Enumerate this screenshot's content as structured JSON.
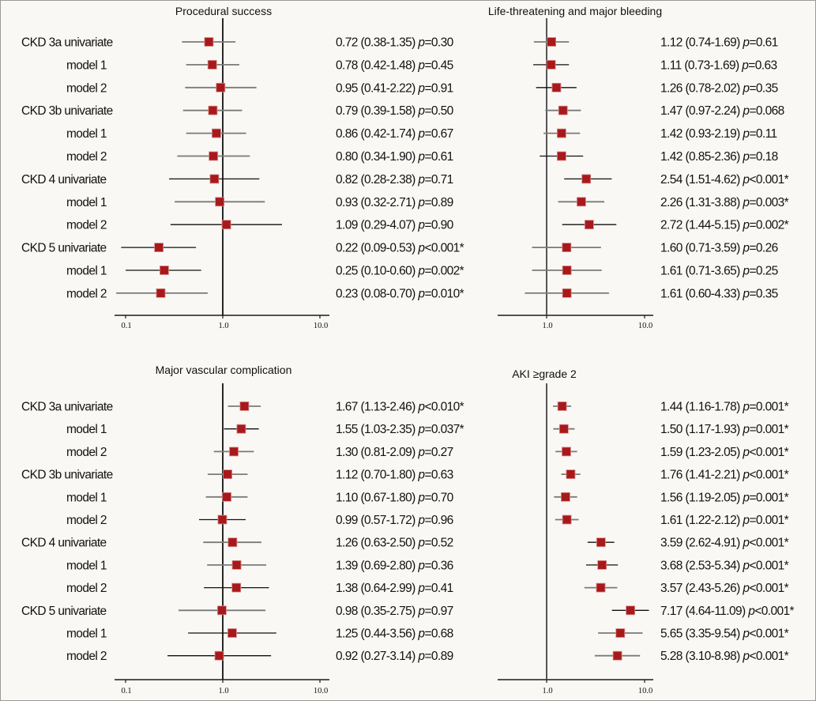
{
  "chart_data": [
    {
      "type": "forest",
      "title": "Procedural success",
      "scale": "log",
      "xlim": [
        0.08,
        11.5
      ],
      "xticks": [
        0.1,
        1.0,
        10.0
      ],
      "xtick_labels": [
        "0.1",
        "1.0",
        "10.0"
      ],
      "reference_line": 1.0,
      "show_row_labels": true,
      "rows": [
        {
          "label": "CKD 3a univariate",
          "indent": false,
          "or": 0.72,
          "lo": 0.38,
          "hi": 1.35,
          "p_op": "=",
          "p": "0.30",
          "sig": false,
          "line": "gray",
          "text": "0.72 (0.38-1.35)"
        },
        {
          "label": "model 1",
          "indent": true,
          "or": 0.78,
          "lo": 0.42,
          "hi": 1.48,
          "p_op": "=",
          "p": "0.45",
          "sig": false,
          "line": "gray",
          "text": "0.78 (0.42-1.48)"
        },
        {
          "label": "model 2",
          "indent": true,
          "or": 0.95,
          "lo": 0.41,
          "hi": 2.22,
          "p_op": "=",
          "p": "0.91",
          "sig": false,
          "line": "gray",
          "text": "0.95 (0.41-2.22)"
        },
        {
          "label": "CKD 3b univariate",
          "indent": false,
          "or": 0.79,
          "lo": 0.39,
          "hi": 1.58,
          "p_op": "=",
          "p": "0.50",
          "sig": false,
          "line": "gray",
          "text": "0.79 (0.39-1.58)"
        },
        {
          "label": "model 1",
          "indent": true,
          "or": 0.86,
          "lo": 0.42,
          "hi": 1.74,
          "p_op": "=",
          "p": "0.67",
          "sig": false,
          "line": "gray",
          "text": "0.86 (0.42-1.74)"
        },
        {
          "label": "model 2",
          "indent": true,
          "or": 0.8,
          "lo": 0.34,
          "hi": 1.9,
          "p_op": "=",
          "p": "0.61",
          "sig": false,
          "line": "gray",
          "text": "0.80 (0.34-1.90)"
        },
        {
          "label": "CKD 4 univariate",
          "indent": false,
          "or": 0.82,
          "lo": 0.28,
          "hi": 2.38,
          "p_op": "=",
          "p": "0.71",
          "sig": false,
          "line": "black",
          "text": "0.82 (0.28-2.38)"
        },
        {
          "label": "model 1",
          "indent": true,
          "or": 0.93,
          "lo": 0.32,
          "hi": 2.71,
          "p_op": "=",
          "p": "0.89",
          "sig": false,
          "line": "gray",
          "text": "0.93 (0.32-2.71)"
        },
        {
          "label": "model 2",
          "indent": true,
          "or": 1.09,
          "lo": 0.29,
          "hi": 4.07,
          "p_op": "=",
          "p": "0.90",
          "sig": false,
          "line": "black",
          "text": "1.09 (0.29-4.07)"
        },
        {
          "label": "CKD 5 univariate",
          "indent": false,
          "or": 0.22,
          "lo": 0.09,
          "hi": 0.53,
          "p_op": "<",
          "p": "0.001",
          "sig": true,
          "line": "black",
          "text": "0.22 (0.09-0.53)"
        },
        {
          "label": "model 1",
          "indent": true,
          "or": 0.25,
          "lo": 0.1,
          "hi": 0.6,
          "p_op": "=",
          "p": "0.002",
          "sig": true,
          "line": "black",
          "text": "0.25 (0.10-0.60)"
        },
        {
          "label": "model 2",
          "indent": true,
          "or": 0.23,
          "lo": 0.08,
          "hi": 0.7,
          "p_op": "=",
          "p": "0.010",
          "sig": true,
          "line": "gray",
          "text": "0.23 (0.08-0.70)"
        }
      ]
    },
    {
      "type": "forest",
      "title": "Life-threatening and major bleeding",
      "scale": "log",
      "xlim": [
        0.31,
        11.8
      ],
      "xticks": [
        1.0,
        10.0
      ],
      "xtick_labels": [
        "1.0",
        "10.0"
      ],
      "reference_line": 1.0,
      "show_row_labels": false,
      "rows": [
        {
          "label": "CKD 3a univariate",
          "indent": false,
          "or": 1.12,
          "lo": 0.74,
          "hi": 1.69,
          "p_op": "=",
          "p": "0.61",
          "sig": false,
          "line": "gray",
          "text": "1.12 (0.74-1.69)"
        },
        {
          "label": "model 1",
          "indent": true,
          "or": 1.11,
          "lo": 0.73,
          "hi": 1.69,
          "p_op": "=",
          "p": "0.63",
          "sig": false,
          "line": "black",
          "text": "1.11 (0.73-1.69)"
        },
        {
          "label": "model 2",
          "indent": true,
          "or": 1.26,
          "lo": 0.78,
          "hi": 2.02,
          "p_op": "=",
          "p": "0.35",
          "sig": false,
          "line": "black",
          "text": "1.26 (0.78-2.02)"
        },
        {
          "label": "CKD 3b univariate",
          "indent": false,
          "or": 1.47,
          "lo": 0.97,
          "hi": 2.24,
          "p_op": "=",
          "p": "0.068",
          "sig": false,
          "line": "gray",
          "text": "1.47 (0.97-2.24)"
        },
        {
          "label": "model 1",
          "indent": true,
          "or": 1.42,
          "lo": 0.93,
          "hi": 2.19,
          "p_op": "=",
          "p": "0.11",
          "sig": false,
          "line": "gray",
          "text": "1.42 (0.93-2.19)"
        },
        {
          "label": "model 2",
          "indent": true,
          "or": 1.42,
          "lo": 0.85,
          "hi": 2.36,
          "p_op": "=",
          "p": "0.18",
          "sig": false,
          "line": "black",
          "text": "1.42 (0.85-2.36)"
        },
        {
          "label": "CKD 4 univariate",
          "indent": false,
          "or": 2.54,
          "lo": 1.51,
          "hi": 4.62,
          "p_op": "<",
          "p": "0.001",
          "sig": true,
          "line": "black",
          "text": "2.54 (1.51-4.62)"
        },
        {
          "label": "model 1",
          "indent": true,
          "or": 2.26,
          "lo": 1.31,
          "hi": 3.88,
          "p_op": "=",
          "p": "0.003",
          "sig": true,
          "line": "gray",
          "text": "2.26 (1.31-3.88)"
        },
        {
          "label": "model 2",
          "indent": true,
          "or": 2.72,
          "lo": 1.44,
          "hi": 5.15,
          "p_op": "=",
          "p": "0.002",
          "sig": true,
          "line": "black",
          "text": "2.72 (1.44-5.15)"
        },
        {
          "label": "CKD 5 univariate",
          "indent": false,
          "or": 1.6,
          "lo": 0.71,
          "hi": 3.59,
          "p_op": "=",
          "p": "0.26",
          "sig": false,
          "line": "gray",
          "text": "1.60 (0.71-3.59)"
        },
        {
          "label": "model 1",
          "indent": true,
          "or": 1.61,
          "lo": 0.71,
          "hi": 3.65,
          "p_op": "=",
          "p": "0.25",
          "sig": false,
          "line": "gray",
          "text": "1.61 (0.71-3.65)"
        },
        {
          "label": "model 2",
          "indent": true,
          "or": 1.61,
          "lo": 0.6,
          "hi": 4.33,
          "p_op": "=",
          "p": "0.35",
          "sig": false,
          "line": "gray",
          "text": "1.61 (0.60-4.33)"
        }
      ]
    },
    {
      "type": "forest",
      "title": "Major vascular complication",
      "scale": "log",
      "xlim": [
        0.08,
        11.5
      ],
      "xticks": [
        0.1,
        1.0,
        10.0
      ],
      "xtick_labels": [
        "0.1",
        "1.0",
        "10.0"
      ],
      "reference_line": 1.0,
      "show_row_labels": true,
      "rows": [
        {
          "label": "CKD 3a univariate",
          "indent": false,
          "or": 1.67,
          "lo": 1.13,
          "hi": 2.46,
          "p_op": "<",
          "p": "0.010",
          "sig": true,
          "line": "gray",
          "text": "1.67 (1.13-2.46)"
        },
        {
          "label": "model 1",
          "indent": true,
          "or": 1.55,
          "lo": 1.03,
          "hi": 2.35,
          "p_op": "=",
          "p": "0.037",
          "sig": true,
          "line": "black",
          "text": "1.55 (1.03-2.35)"
        },
        {
          "label": "model 2",
          "indent": true,
          "or": 1.3,
          "lo": 0.81,
          "hi": 2.09,
          "p_op": "=",
          "p": "0.27",
          "sig": false,
          "line": "gray",
          "text": "1.30 (0.81-2.09)"
        },
        {
          "label": "CKD 3b univariate",
          "indent": false,
          "or": 1.12,
          "lo": 0.7,
          "hi": 1.8,
          "p_op": "=",
          "p": "0.63",
          "sig": false,
          "line": "gray",
          "text": "1.12 (0.70-1.80)"
        },
        {
          "label": "model 1",
          "indent": true,
          "or": 1.1,
          "lo": 0.67,
          "hi": 1.8,
          "p_op": "=",
          "p": "0.70",
          "sig": false,
          "line": "gray",
          "text": "1.10 (0.67-1.80)"
        },
        {
          "label": "model 2",
          "indent": true,
          "or": 0.99,
          "lo": 0.57,
          "hi": 1.72,
          "p_op": "=",
          "p": "0.96",
          "sig": false,
          "line": "black",
          "text": "0.99 (0.57-1.72)"
        },
        {
          "label": "CKD 4 univariate",
          "indent": false,
          "or": 1.26,
          "lo": 0.63,
          "hi": 2.5,
          "p_op": "=",
          "p": "0.52",
          "sig": false,
          "line": "gray",
          "text": "1.26 (0.63-2.50)"
        },
        {
          "label": "model 1",
          "indent": true,
          "or": 1.39,
          "lo": 0.69,
          "hi": 2.8,
          "p_op": "=",
          "p": "0.36",
          "sig": false,
          "line": "gray",
          "text": "1.39 (0.69-2.80)"
        },
        {
          "label": "model 2",
          "indent": true,
          "or": 1.38,
          "lo": 0.64,
          "hi": 2.99,
          "p_op": "=",
          "p": "0.41",
          "sig": false,
          "line": "black",
          "text": "1.38 (0.64-2.99)"
        },
        {
          "label": "CKD 5 univariate",
          "indent": false,
          "or": 0.98,
          "lo": 0.35,
          "hi": 2.75,
          "p_op": "=",
          "p": "0.97",
          "sig": false,
          "line": "gray",
          "text": "0.98 (0.35-2.75)"
        },
        {
          "label": "model 1",
          "indent": true,
          "or": 1.25,
          "lo": 0.44,
          "hi": 3.56,
          "p_op": "=",
          "p": "0.68",
          "sig": false,
          "line": "black",
          "text": "1.25 (0.44-3.56)"
        },
        {
          "label": "model 2",
          "indent": true,
          "or": 0.92,
          "lo": 0.27,
          "hi": 3.14,
          "p_op": "=",
          "p": "0.89",
          "sig": false,
          "line": "black",
          "text": "0.92 (0.27-3.14)"
        }
      ]
    },
    {
      "type": "forest",
      "title": "AKI ≥grade 2",
      "scale": "log",
      "xlim": [
        0.31,
        11.8
      ],
      "xticks": [
        1.0,
        10.0
      ],
      "xtick_labels": [
        "1.0",
        "10.0"
      ],
      "reference_line": 1.0,
      "show_row_labels": false,
      "rows": [
        {
          "label": "CKD 3a univariate",
          "indent": false,
          "or": 1.44,
          "lo": 1.16,
          "hi": 1.78,
          "p_op": "=",
          "p": "0.001",
          "sig": true,
          "line": "gray",
          "text": "1.44 (1.16-1.78)"
        },
        {
          "label": "model 1",
          "indent": true,
          "or": 1.5,
          "lo": 1.17,
          "hi": 1.93,
          "p_op": "=",
          "p": "0.001",
          "sig": true,
          "line": "gray",
          "text": "1.50 (1.17-1.93)"
        },
        {
          "label": "model 2",
          "indent": true,
          "or": 1.59,
          "lo": 1.23,
          "hi": 2.05,
          "p_op": "<",
          "p": "0.001",
          "sig": true,
          "line": "gray",
          "text": "1.59 (1.23-2.05)"
        },
        {
          "label": "CKD 3b univariate",
          "indent": false,
          "or": 1.76,
          "lo": 1.41,
          "hi": 2.21,
          "p_op": "<",
          "p": "0.001",
          "sig": true,
          "line": "gray",
          "text": "1.76 (1.41-2.21)"
        },
        {
          "label": "model 1",
          "indent": true,
          "or": 1.56,
          "lo": 1.19,
          "hi": 2.05,
          "p_op": "=",
          "p": "0.001",
          "sig": true,
          "line": "gray",
          "text": "1.56 (1.19-2.05)"
        },
        {
          "label": "model 2",
          "indent": true,
          "or": 1.61,
          "lo": 1.22,
          "hi": 2.12,
          "p_op": "=",
          "p": "0.001",
          "sig": true,
          "line": "gray",
          "text": "1.61 (1.22-2.12)"
        },
        {
          "label": "CKD 4 univariate",
          "indent": false,
          "or": 3.59,
          "lo": 2.62,
          "hi": 4.91,
          "p_op": "<",
          "p": "0.001",
          "sig": true,
          "line": "black",
          "text": "3.59 (2.62-4.91)"
        },
        {
          "label": "model 1",
          "indent": true,
          "or": 3.68,
          "lo": 2.53,
          "hi": 5.34,
          "p_op": "<",
          "p": "0.001",
          "sig": true,
          "line": "black",
          "text": "3.68 (2.53-5.34)"
        },
        {
          "label": "model 2",
          "indent": true,
          "or": 3.57,
          "lo": 2.43,
          "hi": 5.26,
          "p_op": "<",
          "p": "0.001",
          "sig": true,
          "line": "gray",
          "text": "3.57 (2.43-5.26)"
        },
        {
          "label": "CKD 5 univariate",
          "indent": false,
          "or": 7.17,
          "lo": 4.64,
          "hi": 11.09,
          "p_op": "<",
          "p": "0.001",
          "sig": true,
          "line": "black",
          "text": "7.17 (4.64-11.09)"
        },
        {
          "label": "model 1",
          "indent": true,
          "or": 5.65,
          "lo": 3.35,
          "hi": 9.54,
          "p_op": "<",
          "p": "0.001",
          "sig": true,
          "line": "gray",
          "text": "5.65 (3.35-9.54)"
        },
        {
          "label": "model 2",
          "indent": true,
          "or": 5.28,
          "lo": 3.1,
          "hi": 8.98,
          "p_op": "<",
          "p": "0.001",
          "sig": true,
          "line": "gray",
          "text": "5.28 (3.10-8.98)"
        }
      ]
    }
  ],
  "style": {
    "marker_color": "#a8191b",
    "marker_edge": "#d98a8a",
    "line_black": "#111111",
    "line_gray": "#7a7a7a",
    "axis_color": "#1a1a1a",
    "ref_line_dark": "#111111",
    "ref_line_gray": "#444444",
    "background": "#f9f8f4"
  },
  "text": {
    "p_symbol": "p",
    "sig_marker": "*"
  }
}
